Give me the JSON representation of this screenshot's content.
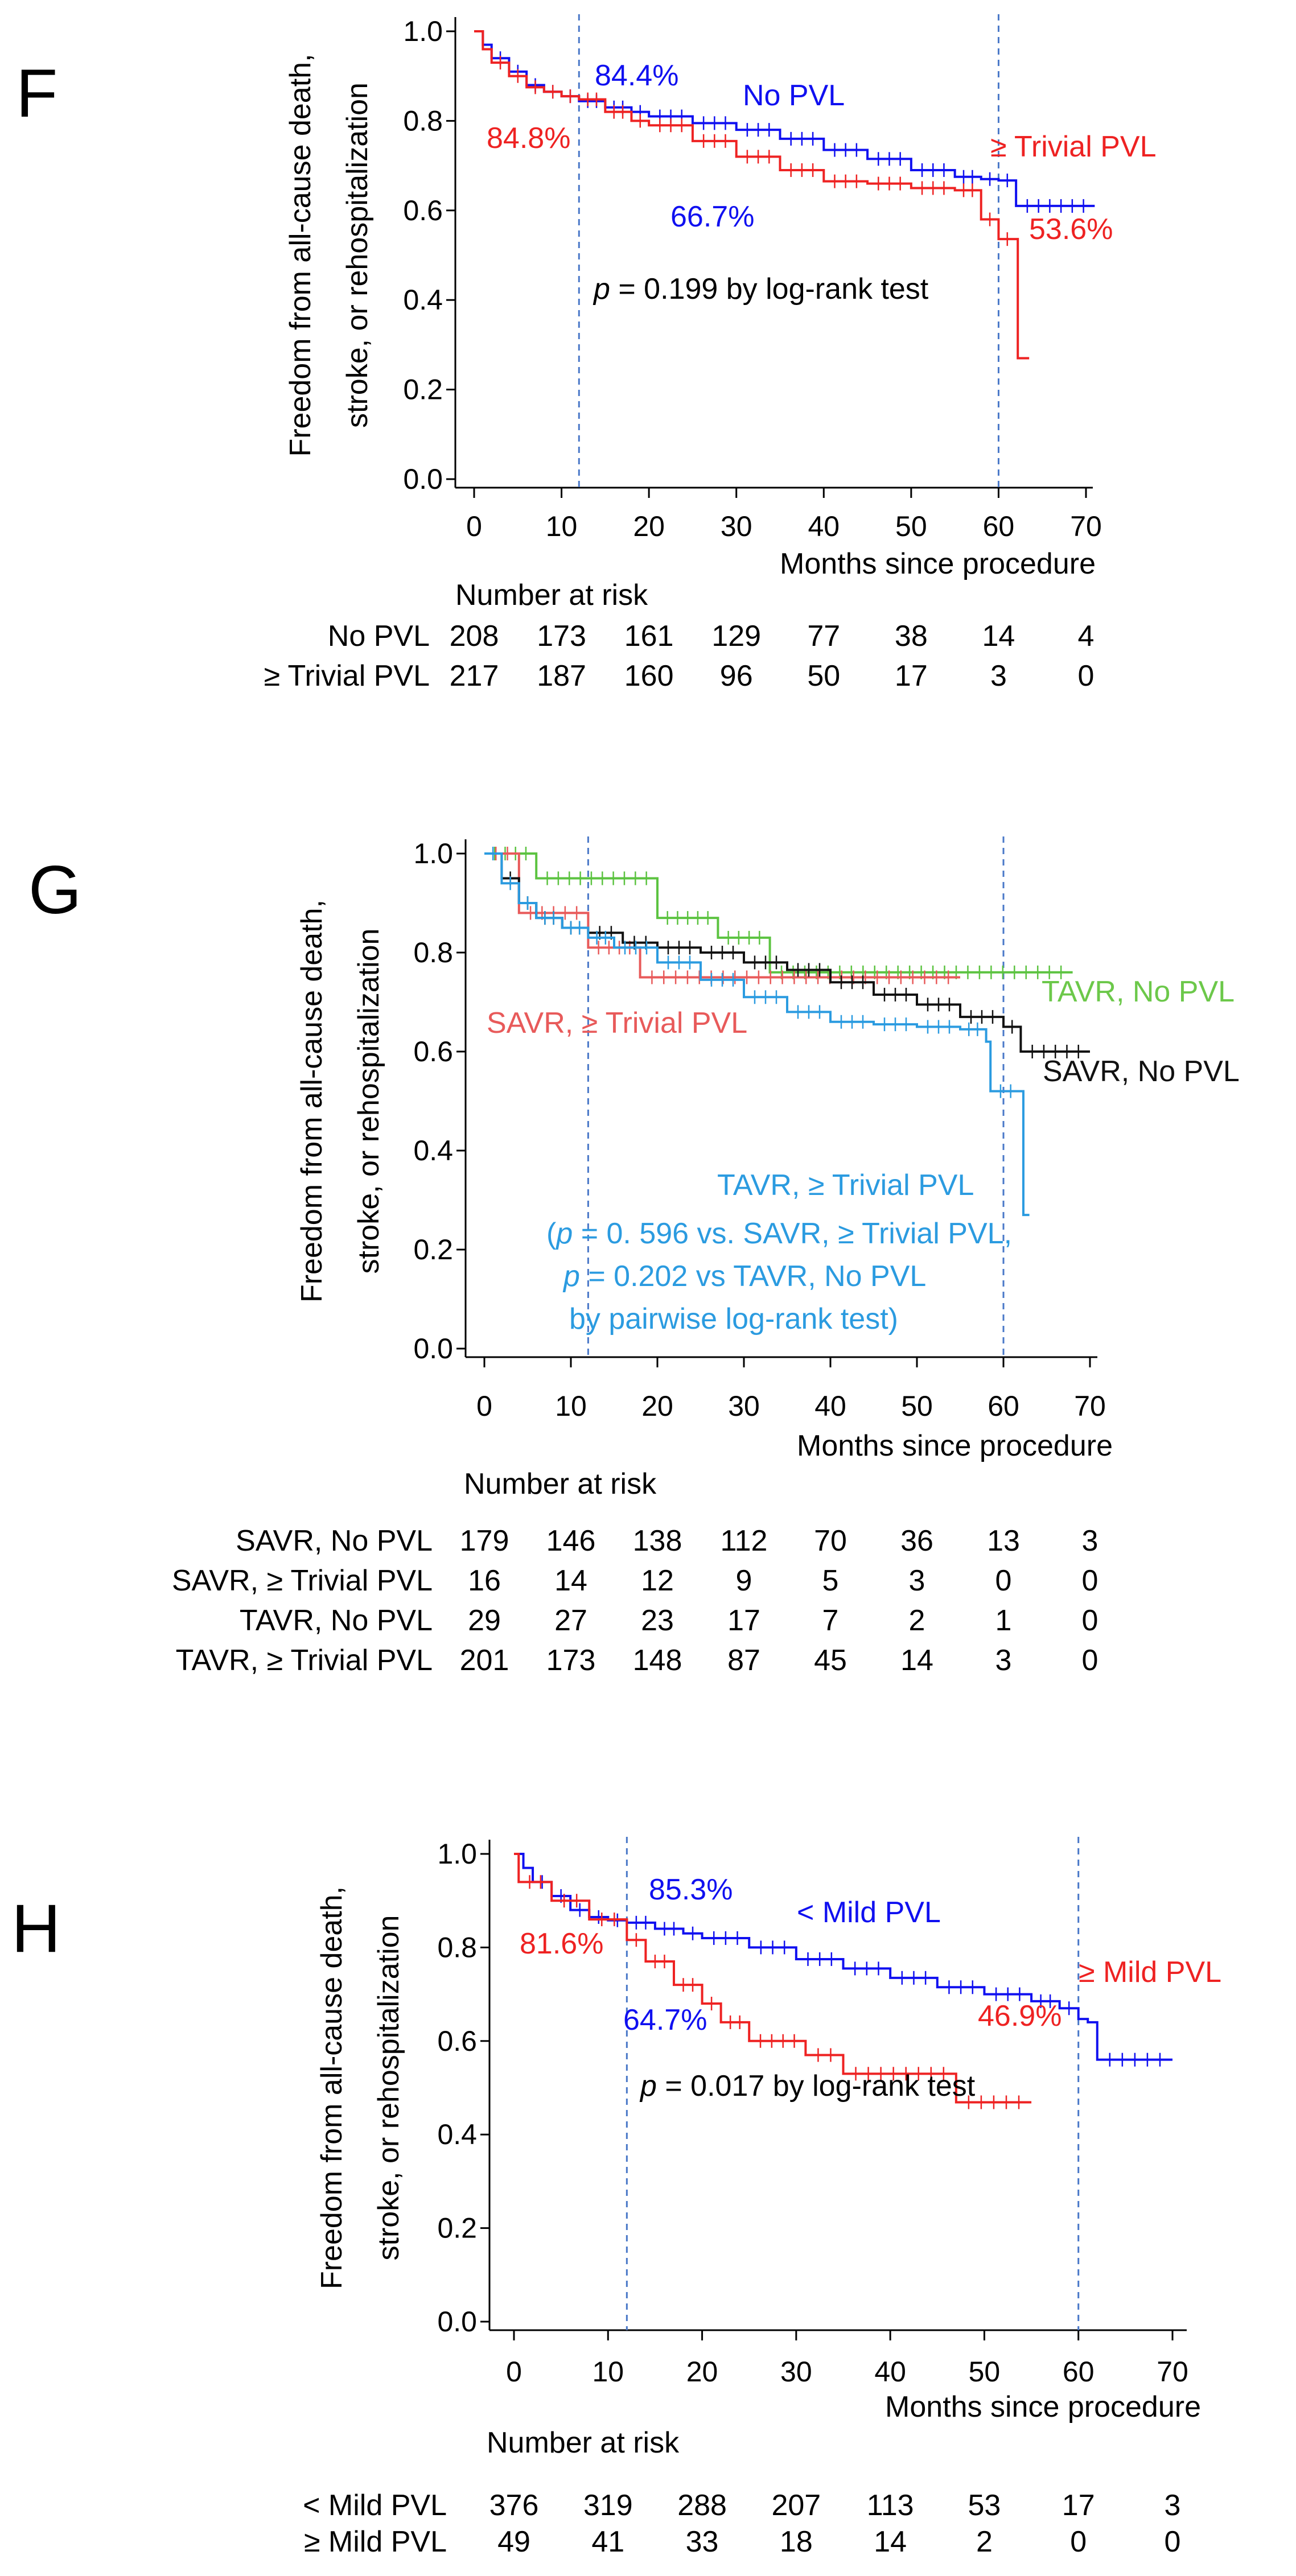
{
  "chart_data": [
    {
      "type": "line",
      "panel_letter": "F",
      "ylabel_lines": [
        "Freedom from all-cause death,",
        "stroke, or rehospitalization"
      ],
      "xlabel": "Months since procedure",
      "xlim": [
        0,
        70
      ],
      "ylim": [
        0,
        1
      ],
      "x_ticks": [
        "0",
        "10",
        "20",
        "30",
        "40",
        "50",
        "60",
        "70"
      ],
      "y_ticks": [
        "0.0",
        "0.2",
        "0.4",
        "0.6",
        "0.8",
        "1.0"
      ],
      "landmark_months": [
        12,
        60
      ],
      "series": [
        {
          "name": "No PVL",
          "color": "#1010f0",
          "points": [
            [
              0,
              1.0
            ],
            [
              1,
              0.97
            ],
            [
              2,
              0.94
            ],
            [
              4,
              0.91
            ],
            [
              6,
              0.88
            ],
            [
              8,
              0.865
            ],
            [
              10,
              0.855
            ],
            [
              12,
              0.844
            ],
            [
              15,
              0.83
            ],
            [
              18,
              0.82
            ],
            [
              20,
              0.81
            ],
            [
              25,
              0.795
            ],
            [
              30,
              0.78
            ],
            [
              35,
              0.76
            ],
            [
              40,
              0.735
            ],
            [
              45,
              0.715
            ],
            [
              50,
              0.69
            ],
            [
              55,
              0.675
            ],
            [
              58,
              0.67
            ],
            [
              60,
              0.667
            ],
            [
              62,
              0.61
            ],
            [
              71,
              0.61
            ]
          ]
        },
        {
          "name": "≥ Trivial PVL",
          "color": "#ee2222",
          "points": [
            [
              0,
              1.0
            ],
            [
              1,
              0.96
            ],
            [
              2,
              0.93
            ],
            [
              4,
              0.9
            ],
            [
              6,
              0.875
            ],
            [
              8,
              0.865
            ],
            [
              10,
              0.855
            ],
            [
              12,
              0.848
            ],
            [
              15,
              0.82
            ],
            [
              18,
              0.8
            ],
            [
              20,
              0.79
            ],
            [
              25,
              0.755
            ],
            [
              30,
              0.72
            ],
            [
              35,
              0.69
            ],
            [
              40,
              0.665
            ],
            [
              45,
              0.66
            ],
            [
              50,
              0.65
            ],
            [
              55,
              0.645
            ],
            [
              58,
              0.58
            ],
            [
              60,
              0.536
            ],
            [
              62,
              0.536
            ],
            [
              62.2,
              0.27
            ],
            [
              63.5,
              0.27
            ]
          ]
        }
      ],
      "annotations": [
        {
          "text": "84.4%",
          "color": "#1010f0"
        },
        {
          "text": "84.8%",
          "color": "#ee2222"
        },
        {
          "text": "No PVL",
          "color": "#1010f0"
        },
        {
          "text": "≥ Trivial PVL",
          "color": "#ee2222"
        },
        {
          "text": "66.7%",
          "color": "#1010f0"
        },
        {
          "text": "53.6%",
          "color": "#ee2222"
        }
      ],
      "test_p": "p",
      "test_rest": " = 0.199 by log-rank test",
      "risk_title": "Number at risk",
      "risk_rows": [
        {
          "label": "No PVL",
          "values": [
            "208",
            "173",
            "161",
            "129",
            "77",
            "38",
            "14",
            "4"
          ]
        },
        {
          "label": "≥ Trivial PVL",
          "values": [
            "217",
            "187",
            "160",
            "96",
            "50",
            "17",
            "3",
            "0"
          ]
        }
      ]
    },
    {
      "type": "line",
      "panel_letter": "G",
      "ylabel_lines": [
        "Freedom from all-cause death,",
        "stroke, or rehospitalization"
      ],
      "xlabel": "Months since procedure",
      "xlim": [
        0,
        70
      ],
      "ylim": [
        0,
        1
      ],
      "x_ticks": [
        "0",
        "10",
        "20",
        "30",
        "40",
        "50",
        "60",
        "70"
      ],
      "y_ticks": [
        "0.0",
        "0.2",
        "0.4",
        "0.6",
        "0.8",
        "1.0"
      ],
      "landmark_months": [
        12,
        60
      ],
      "series": [
        {
          "name": "TAVR, No PVL",
          "color": "#5cc341",
          "points": [
            [
              0,
              1.0
            ],
            [
              6,
              1.0
            ],
            [
              6,
              0.95
            ],
            [
              20,
              0.95
            ],
            [
              20,
              0.87
            ],
            [
              27,
              0.87
            ],
            [
              27,
              0.83
            ],
            [
              33,
              0.83
            ],
            [
              33,
              0.76
            ],
            [
              68,
              0.76
            ]
          ]
        },
        {
          "name": "SAVR, ≥ Trivial PVL",
          "color": "#e85a5a",
          "points": [
            [
              0,
              1.0
            ],
            [
              4,
              1.0
            ],
            [
              4,
              0.88
            ],
            [
              12,
              0.88
            ],
            [
              12,
              0.81
            ],
            [
              18,
              0.81
            ],
            [
              18,
              0.75
            ],
            [
              55,
              0.75
            ]
          ]
        },
        {
          "name": "SAVR, No PVL",
          "color": "#111111",
          "points": [
            [
              0,
              1.0
            ],
            [
              2,
              0.95
            ],
            [
              4,
              0.9
            ],
            [
              6,
              0.87
            ],
            [
              9,
              0.85
            ],
            [
              12,
              0.84
            ],
            [
              16,
              0.82
            ],
            [
              20,
              0.81
            ],
            [
              25,
              0.8
            ],
            [
              30,
              0.78
            ],
            [
              35,
              0.765
            ],
            [
              40,
              0.74
            ],
            [
              45,
              0.715
            ],
            [
              50,
              0.695
            ],
            [
              55,
              0.67
            ],
            [
              60,
              0.65
            ],
            [
              62,
              0.6
            ],
            [
              70,
              0.6
            ]
          ]
        },
        {
          "name": "TAVR, ≥ Trivial PVL",
          "color": "#2b9be0",
          "points": [
            [
              0,
              1.0
            ],
            [
              2,
              0.94
            ],
            [
              4,
              0.9
            ],
            [
              6,
              0.87
            ],
            [
              9,
              0.85
            ],
            [
              12,
              0.83
            ],
            [
              15,
              0.81
            ],
            [
              20,
              0.78
            ],
            [
              25,
              0.745
            ],
            [
              30,
              0.71
            ],
            [
              35,
              0.68
            ],
            [
              40,
              0.66
            ],
            [
              45,
              0.655
            ],
            [
              50,
              0.65
            ],
            [
              55,
              0.645
            ],
            [
              58,
              0.62
            ],
            [
              58.5,
              0.52
            ],
            [
              62,
              0.52
            ],
            [
              62.3,
              0.27
            ],
            [
              63,
              0.27
            ]
          ]
        }
      ],
      "annotations": [
        {
          "text": "TAVR, No PVL",
          "color": "#6cc84a"
        },
        {
          "text": "SAVR, ≥ Trivial PVL",
          "color": "#e85a5a"
        },
        {
          "text": "SAVR, No PVL",
          "color": "#111111"
        },
        {
          "text": "TAVR, ≥ Trivial PVL",
          "color": "#2b9be0"
        }
      ],
      "pairwise_lines": [
        {
          "prefix": "(",
          "p": "p",
          "rest": " = 0. 596 vs. SAVR, ≥ Trivial PVL,"
        },
        {
          "prefix": "",
          "p": "p",
          "rest": " = 0.202 vs TAVR, No PVL"
        },
        {
          "prefix": "",
          "p": "",
          "rest": "by pairwise log-rank test)"
        }
      ],
      "risk_title": "Number at risk",
      "risk_rows": [
        {
          "label": "SAVR, No PVL",
          "values": [
            "179",
            "146",
            "138",
            "112",
            "70",
            "36",
            "13",
            "3"
          ]
        },
        {
          "label": "SAVR, ≥ Trivial PVL",
          "values": [
            "16",
            "14",
            "12",
            "9",
            "5",
            "3",
            "0",
            "0"
          ]
        },
        {
          "label": "TAVR, No PVL",
          "values": [
            "29",
            "27",
            "23",
            "17",
            "7",
            "2",
            "1",
            "0"
          ]
        },
        {
          "label": "TAVR, ≥ Trivial PVL",
          "values": [
            "201",
            "173",
            "148",
            "87",
            "45",
            "14",
            "3",
            "0"
          ]
        }
      ]
    },
    {
      "type": "line",
      "panel_letter": "H",
      "ylabel_lines": [
        "Freedom from all-cause death,",
        "stroke, or rehospitalization"
      ],
      "xlabel": "Months since procedure",
      "xlim": [
        0,
        70
      ],
      "ylim": [
        0,
        1
      ],
      "x_ticks": [
        "0",
        "10",
        "20",
        "30",
        "40",
        "50",
        "60",
        "70"
      ],
      "y_ticks": [
        "0.0",
        "0.2",
        "0.4",
        "0.6",
        "0.8",
        "1.0"
      ],
      "landmark_months": [
        12,
        60
      ],
      "series": [
        {
          "name": "< Mild PVL",
          "color": "#1010f0",
          "points": [
            [
              0,
              1.0
            ],
            [
              1,
              0.97
            ],
            [
              2,
              0.94
            ],
            [
              4,
              0.91
            ],
            [
              6,
              0.88
            ],
            [
              8,
              0.865
            ],
            [
              10,
              0.858
            ],
            [
              12,
              0.853
            ],
            [
              15,
              0.84
            ],
            [
              18,
              0.83
            ],
            [
              20,
              0.82
            ],
            [
              25,
              0.8
            ],
            [
              30,
              0.775
            ],
            [
              35,
              0.755
            ],
            [
              40,
              0.735
            ],
            [
              45,
              0.715
            ],
            [
              50,
              0.7
            ],
            [
              55,
              0.685
            ],
            [
              58,
              0.67
            ],
            [
              60,
              0.647
            ],
            [
              61,
              0.64
            ],
            [
              62,
              0.56
            ],
            [
              70,
              0.56
            ]
          ]
        },
        {
          "name": "≥ Mild PVL",
          "color": "#ee2222",
          "points": [
            [
              0,
              1.0
            ],
            [
              0.5,
              0.94
            ],
            [
              4,
              0.94
            ],
            [
              4,
              0.9
            ],
            [
              8,
              0.9
            ],
            [
              8,
              0.86
            ],
            [
              12,
              0.86
            ],
            [
              12,
              0.816
            ],
            [
              14,
              0.816
            ],
            [
              14,
              0.77
            ],
            [
              17,
              0.77
            ],
            [
              17,
              0.72
            ],
            [
              20,
              0.72
            ],
            [
              20,
              0.68
            ],
            [
              22,
              0.68
            ],
            [
              22,
              0.64
            ],
            [
              25,
              0.64
            ],
            [
              25,
              0.6
            ],
            [
              31,
              0.6
            ],
            [
              31,
              0.57
            ],
            [
              35,
              0.57
            ],
            [
              35,
              0.53
            ],
            [
              47,
              0.53
            ],
            [
              47,
              0.469
            ],
            [
              55,
              0.469
            ]
          ]
        }
      ],
      "annotations": [
        {
          "text": "85.3%",
          "color": "#1010f0"
        },
        {
          "text": "81.6%",
          "color": "#ee2222"
        },
        {
          "text": "< Mild PVL",
          "color": "#1010f0"
        },
        {
          "text": "≥ Mild PVL",
          "color": "#ee2222"
        },
        {
          "text": "64.7%",
          "color": "#1010f0"
        },
        {
          "text": "46.9%",
          "color": "#ee2222"
        }
      ],
      "test_p": "p",
      "test_rest": " = 0.017 by log-rank test",
      "risk_title": "Number at risk",
      "risk_rows": [
        {
          "label": "< Mild PVL",
          "values": [
            "376",
            "319",
            "288",
            "207",
            "113",
            "53",
            "17",
            "3"
          ]
        },
        {
          "label": "≥ Mild PVL",
          "values": [
            "49",
            "41",
            "33",
            "18",
            "14",
            "2",
            "0",
            "0"
          ]
        }
      ]
    }
  ]
}
